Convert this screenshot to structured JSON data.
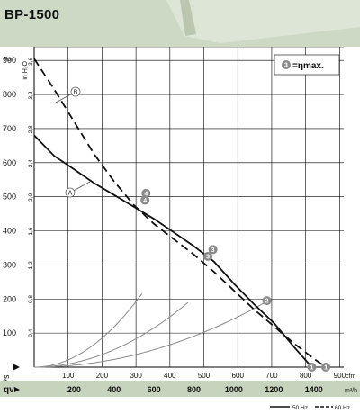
{
  "title": "BP-1500",
  "colors": {
    "banner": "#cdd9c5",
    "banner_light": "#dde6d6",
    "plot_bg": "#ffffff",
    "grid": "#000000",
    "axis_band": "#c7d4bd",
    "curve_a": "#111111",
    "curve_b": "#111111",
    "system": "#8a8a8a",
    "marker": "#8a8a8a"
  },
  "chart_data": {
    "type": "line",
    "title": "BP-1500",
    "legend_note": {
      "marker": "3",
      "text": "=ηmax."
    },
    "y_primary": {
      "unit": "Pa",
      "min": 0,
      "max": 940,
      "ticks": [
        100,
        200,
        300,
        400,
        500,
        600,
        700,
        800,
        900
      ]
    },
    "y_secondary": {
      "unit": "in H₂O",
      "ticks": [
        "0,4",
        "0,8",
        "1,2",
        "1,6",
        "2,0",
        "2,4",
        "2,8",
        "3,2",
        "3,6"
      ],
      "values": [
        0.4,
        0.8,
        1.2,
        1.6,
        2.0,
        2.4,
        2.8,
        3.2,
        3.6
      ]
    },
    "x_primary": {
      "unit": "m³/h",
      "min": 0,
      "max": 1550,
      "ticks": [
        200,
        400,
        600,
        800,
        1000,
        1200,
        1400
      ]
    },
    "x_secondary": {
      "unit": "cfm",
      "ticks": [
        100,
        200,
        300,
        400,
        500,
        600,
        700,
        800,
        900
      ]
    },
    "axis_labels": {
      "y": "Ps",
      "x": "qv"
    },
    "series": [
      {
        "name": "A",
        "freq_label": "50 Hz",
        "dash": "solid",
        "x": [
          0,
          100,
          200,
          300,
          400,
          500,
          600,
          700,
          800,
          900,
          1000,
          1100,
          1200,
          1300,
          1390
        ],
        "y": [
          680,
          620,
          580,
          540,
          505,
          470,
          435,
          395,
          355,
          310,
          245,
          185,
          130,
          60,
          0
        ]
      },
      {
        "name": "B",
        "freq_label": "60 Hz",
        "dash": "dashed",
        "x": [
          0,
          100,
          200,
          300,
          400,
          500,
          600,
          700,
          800,
          900,
          1000,
          1100,
          1200,
          1300,
          1400,
          1460
        ],
        "y": [
          905,
          815,
          720,
          625,
          545,
          475,
          420,
          375,
          330,
          280,
          225,
          170,
          120,
          70,
          25,
          0
        ]
      }
    ],
    "system_curves": [
      {
        "k": 0.00074,
        "x_end": 540
      },
      {
        "k": 0.00032,
        "x_end": 770
      },
      {
        "k": 0.000142,
        "x_end": 1160
      }
    ],
    "markers": [
      {
        "label": "4",
        "series": "A",
        "x": 555,
        "y": 490
      },
      {
        "label": "4",
        "series": "B",
        "x": 560,
        "y": 510
      },
      {
        "label": "3",
        "series": "A",
        "x": 870,
        "y": 325
      },
      {
        "label": "3",
        "series": "B",
        "x": 895,
        "y": 345
      },
      {
        "label": "2",
        "series": "A",
        "x": 1165,
        "y": 195
      },
      {
        "label": "1",
        "series": "A",
        "x": 1390,
        "y": 0
      },
      {
        "label": "1",
        "series": "B",
        "x": 1460,
        "y": 0
      }
    ],
    "labels": [
      {
        "text": "A",
        "series": "A"
      },
      {
        "text": "B",
        "series": "B"
      }
    ],
    "legend": [
      {
        "text": "50 Hz",
        "dash": "solid"
      },
      {
        "text": "60 Hz",
        "dash": "dashed"
      }
    ],
    "grid": true
  }
}
